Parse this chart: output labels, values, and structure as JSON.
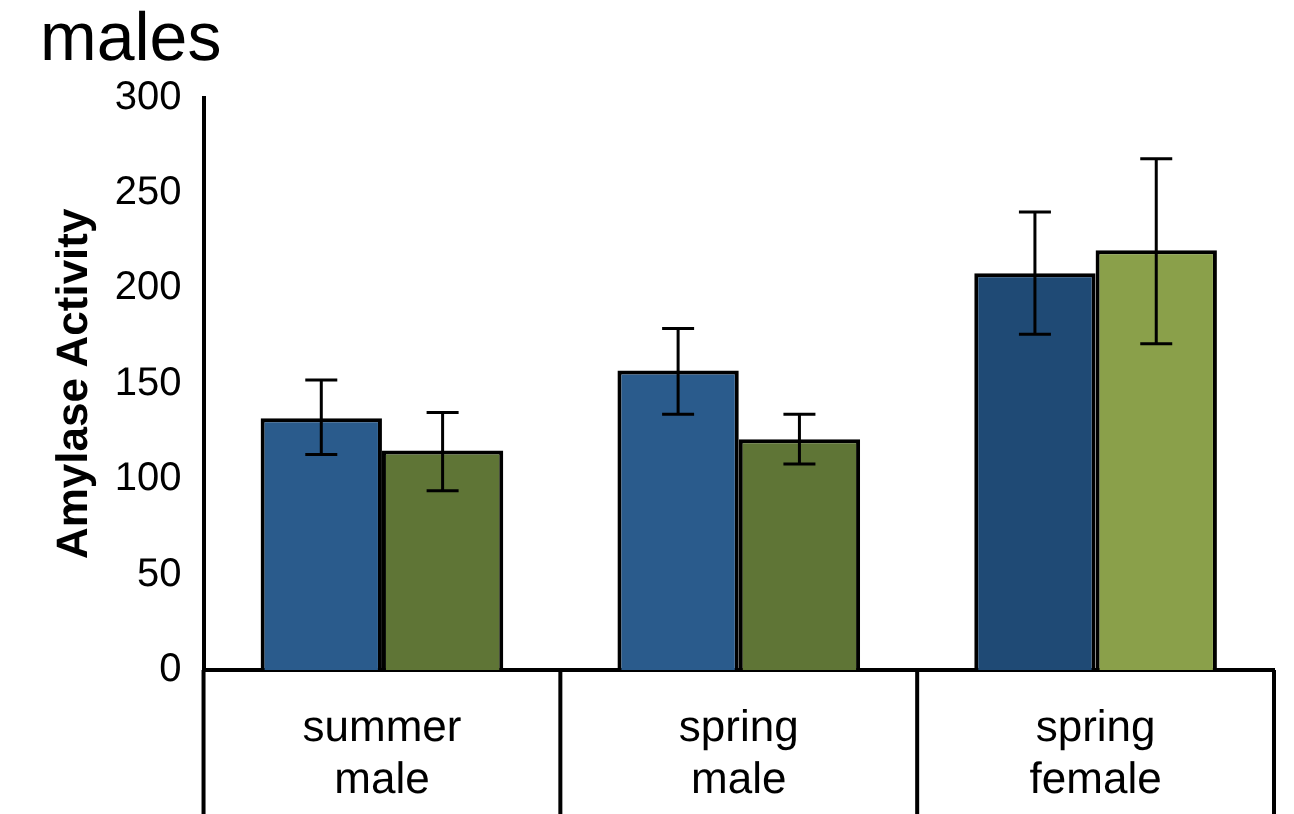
{
  "chart_data": {
    "type": "bar",
    "title": "males",
    "ylabel": "Amylase Activity",
    "categories": [
      "summer male",
      "spring male",
      "spring female"
    ],
    "series": [
      {
        "colors": [
          "#2a5b8c",
          "#2a5b8c",
          "#1f4a75"
        ],
        "values": [
          132,
          157,
          208
        ],
        "errors": [
          [
            113,
            152
          ],
          [
            134,
            179
          ],
          [
            176,
            240
          ]
        ]
      },
      {
        "colors": [
          "#5f7536",
          "#5f7536",
          "#8aa04a"
        ],
        "values": [
          115,
          121,
          220
        ],
        "errors": [
          [
            94,
            135
          ],
          [
            108,
            134
          ],
          [
            171,
            268
          ]
        ]
      }
    ],
    "ylim": [
      0,
      300
    ],
    "yticks": [
      0,
      50,
      100,
      150,
      200,
      250,
      300
    ],
    "grid": false,
    "legend": false
  }
}
